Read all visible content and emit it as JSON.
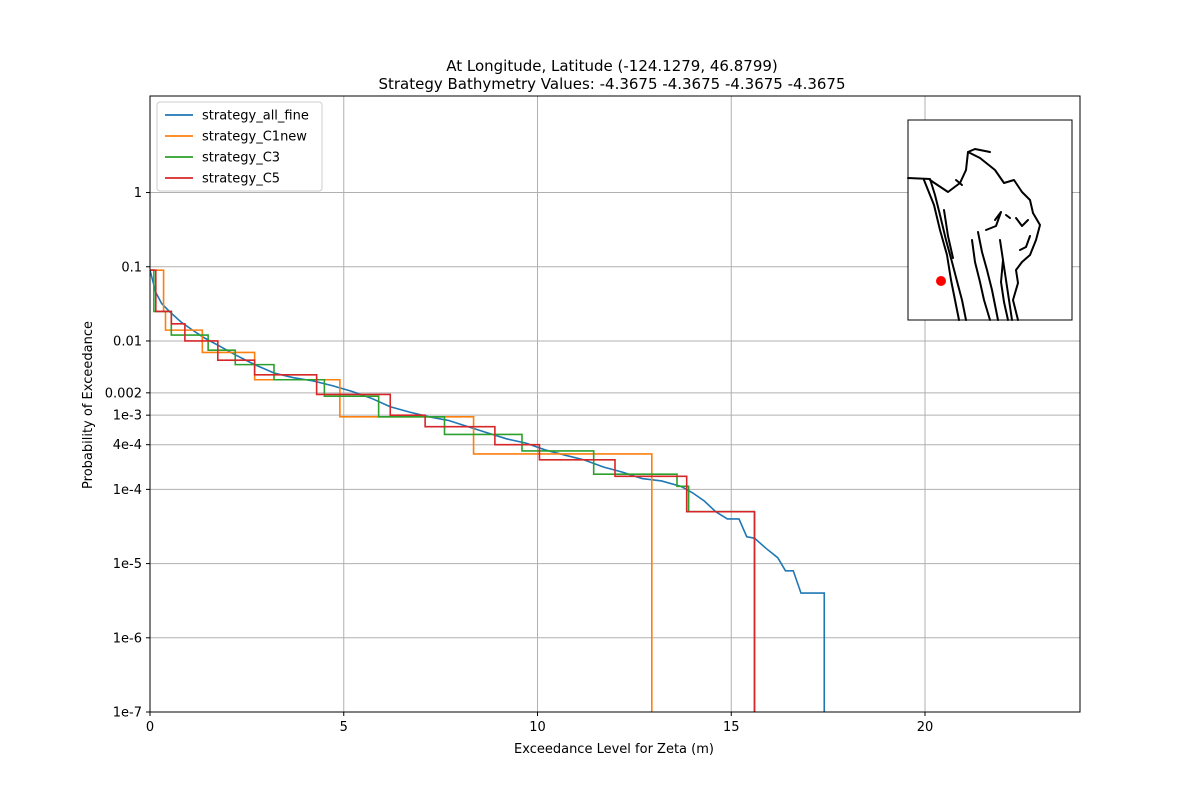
{
  "chart_data": {
    "type": "line",
    "title_line1": "At Longitude, Latitude (-124.1279,  46.8799)",
    "title_line2": "Strategy Bathymetry Values:   -4.3675   -4.3675   -4.3675   -4.3675",
    "xlabel": "Exceedance Level for Zeta (m)",
    "ylabel": "Probability of Exceedance",
    "xlim": [
      0,
      24
    ],
    "ylim": [
      1e-07,
      20
    ],
    "yscale": "log",
    "grid": true,
    "legend_position": "top-left",
    "x_ticks": [
      {
        "value": 0,
        "label": "0"
      },
      {
        "value": 5,
        "label": "5"
      },
      {
        "value": 10,
        "label": "10"
      },
      {
        "value": 15,
        "label": "15"
      },
      {
        "value": 20,
        "label": "20"
      }
    ],
    "y_ticks": [
      {
        "value": 1e-07,
        "label": "1e-7"
      },
      {
        "value": 1e-06,
        "label": "1e-6"
      },
      {
        "value": 1e-05,
        "label": "1e-5"
      },
      {
        "value": 0.0001,
        "label": "1e-4"
      },
      {
        "value": 0.0004,
        "label": "4e-4"
      },
      {
        "value": 0.001,
        "label": "1e-3"
      },
      {
        "value": 0.002,
        "label": "0.002"
      },
      {
        "value": 0.01,
        "label": "0.01"
      },
      {
        "value": 0.1,
        "label": "0.1"
      },
      {
        "value": 1,
        "label": "1"
      }
    ],
    "series": [
      {
        "name": "strategy_all_fine",
        "color": "#1f77b4",
        "style": "curve",
        "points": [
          [
            0,
            0.09
          ],
          [
            0.15,
            0.045
          ],
          [
            0.3,
            0.032
          ],
          [
            0.5,
            0.025
          ],
          [
            0.8,
            0.018
          ],
          [
            1.1,
            0.014
          ],
          [
            1.4,
            0.011
          ],
          [
            1.8,
            0.0085
          ],
          [
            2.2,
            0.0065
          ],
          [
            2.7,
            0.0048
          ],
          [
            3.2,
            0.0037
          ],
          [
            3.7,
            0.0032
          ],
          [
            4.2,
            0.0029
          ],
          [
            4.7,
            0.0025
          ],
          [
            5.2,
            0.0021
          ],
          [
            5.7,
            0.0017
          ],
          [
            6.2,
            0.0013
          ],
          [
            6.7,
            0.0011
          ],
          [
            7.2,
            0.00095
          ],
          [
            7.7,
            0.00085
          ],
          [
            8.2,
            0.0007
          ],
          [
            8.7,
            0.00058
          ],
          [
            9.2,
            0.00048
          ],
          [
            9.7,
            0.00042
          ],
          [
            10.2,
            0.00034
          ],
          [
            10.7,
            0.00029
          ],
          [
            11.2,
            0.00025
          ],
          [
            11.7,
            0.0002
          ],
          [
            12.2,
            0.00017
          ],
          [
            12.7,
            0.00014
          ],
          [
            13.2,
            0.00013
          ],
          [
            13.7,
            0.00011
          ],
          [
            14.0,
            9e-05
          ],
          [
            14.3,
            7e-05
          ],
          [
            14.6,
            5e-05
          ],
          [
            14.9,
            4e-05
          ],
          [
            15.2,
            4e-05
          ],
          [
            15.4,
            2.3e-05
          ],
          [
            15.6,
            2.2e-05
          ],
          [
            15.9,
            1.6e-05
          ],
          [
            16.2,
            1.2e-05
          ],
          [
            16.4,
            8e-06
          ],
          [
            16.6,
            8e-06
          ],
          [
            16.8,
            4e-06
          ],
          [
            17.1,
            4e-06
          ],
          [
            17.4,
            4e-06
          ],
          [
            17.4,
            1e-07
          ]
        ]
      },
      {
        "name": "strategy_C1new",
        "color": "#ff7f0e",
        "style": "step",
        "points": [
          [
            0,
            0.09
          ],
          [
            0.35,
            0.09
          ],
          [
            0.35,
            0.025
          ],
          [
            0.4,
            0.025
          ],
          [
            0.4,
            0.014
          ],
          [
            1.35,
            0.014
          ],
          [
            1.35,
            0.007
          ],
          [
            2.7,
            0.007
          ],
          [
            2.7,
            0.003
          ],
          [
            4.9,
            0.003
          ],
          [
            4.9,
            0.00095
          ],
          [
            8.35,
            0.00095
          ],
          [
            8.35,
            0.0003
          ],
          [
            12.95,
            0.0003
          ],
          [
            12.95,
            1e-07
          ]
        ]
      },
      {
        "name": "strategy_C3",
        "color": "#2ca02c",
        "style": "step",
        "points": [
          [
            0,
            0.09
          ],
          [
            0.1,
            0.09
          ],
          [
            0.1,
            0.025
          ],
          [
            0.55,
            0.025
          ],
          [
            0.55,
            0.012
          ],
          [
            1.5,
            0.012
          ],
          [
            1.5,
            0.0075
          ],
          [
            2.2,
            0.0075
          ],
          [
            2.2,
            0.0048
          ],
          [
            3.2,
            0.0048
          ],
          [
            3.2,
            0.003
          ],
          [
            4.5,
            0.003
          ],
          [
            4.5,
            0.0018
          ],
          [
            5.9,
            0.0018
          ],
          [
            5.9,
            0.00095
          ],
          [
            7.6,
            0.00095
          ],
          [
            7.6,
            0.00055
          ],
          [
            9.6,
            0.00055
          ],
          [
            9.6,
            0.00033
          ],
          [
            11.45,
            0.00033
          ],
          [
            11.45,
            0.00016
          ],
          [
            13.6,
            0.00016
          ],
          [
            13.6,
            0.00011
          ],
          [
            13.9,
            0.00011
          ],
          [
            13.9,
            5e-05
          ],
          [
            15.6,
            5e-05
          ],
          [
            15.6,
            1e-07
          ]
        ]
      },
      {
        "name": "strategy_C5",
        "color": "#d62728",
        "style": "step",
        "points": [
          [
            0,
            0.09
          ],
          [
            0.15,
            0.09
          ],
          [
            0.15,
            0.025
          ],
          [
            0.55,
            0.025
          ],
          [
            0.55,
            0.017
          ],
          [
            0.9,
            0.017
          ],
          [
            0.9,
            0.01
          ],
          [
            1.75,
            0.01
          ],
          [
            1.75,
            0.0055
          ],
          [
            2.7,
            0.0055
          ],
          [
            2.7,
            0.0035
          ],
          [
            4.3,
            0.0035
          ],
          [
            4.3,
            0.0019
          ],
          [
            6.2,
            0.0019
          ],
          [
            6.2,
            0.001
          ],
          [
            7.1,
            0.001
          ],
          [
            7.1,
            0.0007
          ],
          [
            8.9,
            0.0007
          ],
          [
            8.9,
            0.0004
          ],
          [
            10.05,
            0.0004
          ],
          [
            10.05,
            0.00025
          ],
          [
            12.0,
            0.00025
          ],
          [
            12.0,
            0.00015
          ],
          [
            13.85,
            0.00015
          ],
          [
            13.85,
            5e-05
          ],
          [
            15.6,
            5e-05
          ],
          [
            15.6,
            1e-07
          ]
        ]
      }
    ],
    "inset_map": {
      "marker_color": "#ff0000",
      "coast_color": "#000000"
    }
  }
}
